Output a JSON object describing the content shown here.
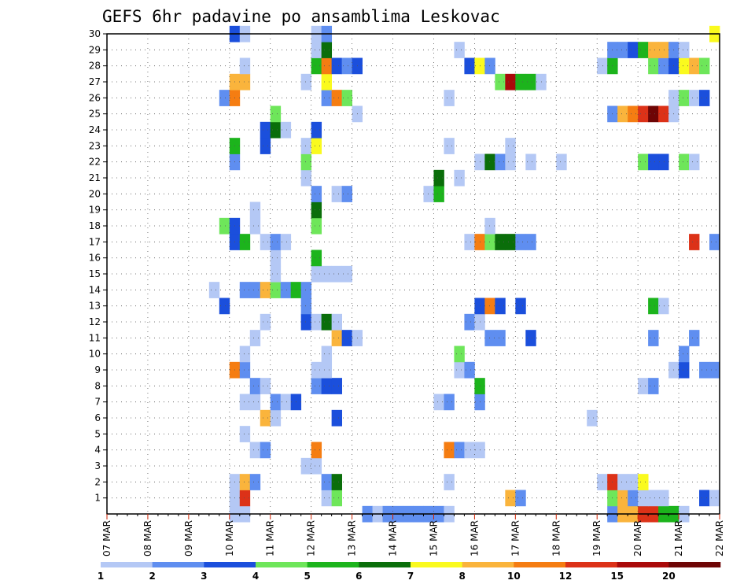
{
  "chart_data": {
    "type": "heatmap",
    "title": "GEFS 6hr padavine po ansamblima Leskovac",
    "xlabel": "",
    "ylabel": "",
    "y_range": [
      0,
      30
    ],
    "y_ticks": [
      1,
      2,
      3,
      4,
      5,
      6,
      7,
      8,
      9,
      10,
      11,
      12,
      13,
      14,
      15,
      16,
      17,
      18,
      19,
      20,
      21,
      22,
      23,
      24,
      25,
      26,
      27,
      28,
      29,
      30
    ],
    "x_ticks": [
      "07 MAR",
      "08 MAR",
      "09 MAR",
      "10 MAR",
      "11 MAR",
      "12 MAR",
      "13 MAR",
      "14 MAR",
      "15 MAR",
      "16 MAR",
      "17 MAR",
      "18 MAR",
      "19 MAR",
      "20 MAR",
      "21 MAR",
      "22 MAR"
    ],
    "x_unit": "6-hour step from 07 MAR 00Z",
    "grid": true,
    "colorbar": {
      "placement": "bottom",
      "levels": [
        "1",
        "2",
        "3",
        "4",
        "5",
        "6",
        "7",
        "8",
        "10",
        "12",
        "15",
        "20"
      ],
      "colors": [
        "#b4c8f5",
        "#5f8ef0",
        "#1b4fdc",
        "#6ee65a",
        "#1cb41c",
        "#0a6e0a",
        "#fafa1e",
        "#fab43c",
        "#f57d12",
        "#dc3218",
        "#aa0a0a",
        "#6e0505"
      ]
    },
    "cells": [
      [
        12,
        0,
        1
      ],
      [
        13,
        0,
        1
      ],
      [
        25,
        0,
        2
      ],
      [
        26,
        0,
        1
      ],
      [
        27,
        0,
        2
      ],
      [
        28,
        0,
        2
      ],
      [
        29,
        0,
        2
      ],
      [
        30,
        0,
        2
      ],
      [
        31,
        0,
        2
      ],
      [
        32,
        0,
        2
      ],
      [
        33,
        0,
        1
      ],
      [
        49,
        0,
        2
      ],
      [
        50,
        0,
        8
      ],
      [
        51,
        0,
        8
      ],
      [
        52,
        0,
        10
      ],
      [
        53,
        0,
        10
      ],
      [
        54,
        0,
        5
      ],
      [
        55,
        0,
        5
      ],
      [
        56,
        0,
        1
      ],
      [
        12,
        1,
        1
      ],
      [
        13,
        1,
        10
      ],
      [
        21,
        1,
        1
      ],
      [
        22,
        1,
        4
      ],
      [
        39,
        1,
        8
      ],
      [
        40,
        1,
        2
      ],
      [
        49,
        1,
        4
      ],
      [
        50,
        1,
        8
      ],
      [
        51,
        1,
        2
      ],
      [
        52,
        1,
        1
      ],
      [
        53,
        1,
        1
      ],
      [
        54,
        1,
        1
      ],
      [
        58,
        1,
        3
      ],
      [
        59,
        1,
        1
      ],
      [
        12,
        2,
        1
      ],
      [
        13,
        2,
        8
      ],
      [
        14,
        2,
        2
      ],
      [
        21,
        2,
        2
      ],
      [
        22,
        2,
        6
      ],
      [
        33,
        2,
        1
      ],
      [
        48,
        2,
        1
      ],
      [
        49,
        2,
        10
      ],
      [
        50,
        2,
        1
      ],
      [
        51,
        2,
        1
      ],
      [
        52,
        2,
        7
      ],
      [
        19,
        3,
        1
      ],
      [
        20,
        3,
        1
      ],
      [
        14,
        4,
        1
      ],
      [
        15,
        4,
        2
      ],
      [
        20,
        4,
        9
      ],
      [
        33,
        4,
        9
      ],
      [
        34,
        4,
        2
      ],
      [
        35,
        4,
        1
      ],
      [
        36,
        4,
        1
      ],
      [
        13,
        5,
        1
      ],
      [
        15,
        6,
        8
      ],
      [
        16,
        6,
        1
      ],
      [
        22,
        6,
        3
      ],
      [
        47,
        6,
        1
      ],
      [
        13,
        7,
        1
      ],
      [
        14,
        7,
        1
      ],
      [
        16,
        7,
        2
      ],
      [
        17,
        7,
        1
      ],
      [
        18,
        7,
        3
      ],
      [
        32,
        7,
        1
      ],
      [
        33,
        7,
        2
      ],
      [
        36,
        7,
        2
      ],
      [
        14,
        8,
        2
      ],
      [
        15,
        8,
        1
      ],
      [
        20,
        8,
        2
      ],
      [
        21,
        8,
        3
      ],
      [
        22,
        8,
        3
      ],
      [
        36,
        8,
        5
      ],
      [
        52,
        8,
        1
      ],
      [
        53,
        8,
        2
      ],
      [
        12,
        9,
        9
      ],
      [
        13,
        9,
        2
      ],
      [
        20,
        9,
        1
      ],
      [
        21,
        9,
        1
      ],
      [
        34,
        9,
        1
      ],
      [
        35,
        9,
        2
      ],
      [
        55,
        9,
        1
      ],
      [
        56,
        9,
        3
      ],
      [
        58,
        9,
        2
      ],
      [
        59,
        9,
        2
      ],
      [
        13,
        10,
        1
      ],
      [
        21,
        10,
        1
      ],
      [
        34,
        10,
        4
      ],
      [
        56,
        10,
        2
      ],
      [
        14,
        11,
        1
      ],
      [
        22,
        11,
        8
      ],
      [
        23,
        11,
        3
      ],
      [
        24,
        11,
        1
      ],
      [
        37,
        11,
        2
      ],
      [
        38,
        11,
        2
      ],
      [
        41,
        11,
        3
      ],
      [
        53,
        11,
        2
      ],
      [
        57,
        11,
        2
      ],
      [
        15,
        12,
        1
      ],
      [
        19,
        12,
        3
      ],
      [
        20,
        12,
        1
      ],
      [
        21,
        12,
        6
      ],
      [
        22,
        12,
        1
      ],
      [
        35,
        12,
        2
      ],
      [
        36,
        12,
        1
      ],
      [
        11,
        13,
        3
      ],
      [
        19,
        13,
        2
      ],
      [
        36,
        13,
        3
      ],
      [
        37,
        13,
        9
      ],
      [
        38,
        13,
        3
      ],
      [
        40,
        13,
        3
      ],
      [
        53,
        13,
        5
      ],
      [
        54,
        13,
        1
      ],
      [
        10,
        14,
        1
      ],
      [
        13,
        14,
        2
      ],
      [
        14,
        14,
        2
      ],
      [
        15,
        14,
        8
      ],
      [
        16,
        14,
        4
      ],
      [
        17,
        14,
        2
      ],
      [
        18,
        14,
        5
      ],
      [
        19,
        14,
        2
      ],
      [
        16,
        15,
        1
      ],
      [
        20,
        15,
        1
      ],
      [
        21,
        15,
        1
      ],
      [
        22,
        15,
        1
      ],
      [
        23,
        15,
        1
      ],
      [
        16,
        16,
        1
      ],
      [
        20,
        16,
        5
      ],
      [
        12,
        17,
        3
      ],
      [
        13,
        17,
        5
      ],
      [
        15,
        17,
        1
      ],
      [
        16,
        17,
        2
      ],
      [
        17,
        17,
        1
      ],
      [
        35,
        17,
        1
      ],
      [
        36,
        17,
        9
      ],
      [
        37,
        17,
        4
      ],
      [
        38,
        17,
        6
      ],
      [
        39,
        17,
        6
      ],
      [
        40,
        17,
        2
      ],
      [
        41,
        17,
        2
      ],
      [
        57,
        17,
        10
      ],
      [
        59,
        17,
        2
      ],
      [
        11,
        18,
        4
      ],
      [
        12,
        18,
        3
      ],
      [
        14,
        18,
        1
      ],
      [
        20,
        18,
        4
      ],
      [
        37,
        18,
        1
      ],
      [
        14,
        19,
        1
      ],
      [
        20,
        19,
        6
      ],
      [
        20,
        20,
        2
      ],
      [
        22,
        20,
        1
      ],
      [
        23,
        20,
        2
      ],
      [
        31,
        20,
        1
      ],
      [
        32,
        20,
        5
      ],
      [
        19,
        21,
        1
      ],
      [
        32,
        21,
        6
      ],
      [
        34,
        21,
        1
      ],
      [
        12,
        22,
        2
      ],
      [
        19,
        22,
        4
      ],
      [
        36,
        22,
        1
      ],
      [
        37,
        22,
        6
      ],
      [
        38,
        22,
        2
      ],
      [
        39,
        22,
        1
      ],
      [
        41,
        22,
        1
      ],
      [
        44,
        22,
        1
      ],
      [
        52,
        22,
        4
      ],
      [
        53,
        22,
        3
      ],
      [
        54,
        22,
        3
      ],
      [
        56,
        22,
        4
      ],
      [
        57,
        22,
        1
      ],
      [
        12,
        23,
        5
      ],
      [
        15,
        23,
        3
      ],
      [
        19,
        23,
        1
      ],
      [
        20,
        23,
        7
      ],
      [
        33,
        23,
        1
      ],
      [
        39,
        23,
        1
      ],
      [
        15,
        24,
        3
      ],
      [
        16,
        24,
        6
      ],
      [
        17,
        24,
        1
      ],
      [
        20,
        24,
        3
      ],
      [
        16,
        25,
        4
      ],
      [
        24,
        25,
        1
      ],
      [
        49,
        25,
        2
      ],
      [
        50,
        25,
        8
      ],
      [
        51,
        25,
        9
      ],
      [
        52,
        25,
        10
      ],
      [
        53,
        25,
        12
      ],
      [
        54,
        25,
        10
      ],
      [
        55,
        25,
        1
      ],
      [
        11,
        26,
        2
      ],
      [
        12,
        26,
        9
      ],
      [
        21,
        26,
        2
      ],
      [
        22,
        26,
        9
      ],
      [
        23,
        26,
        4
      ],
      [
        33,
        26,
        1
      ],
      [
        55,
        26,
        1
      ],
      [
        56,
        26,
        4
      ],
      [
        57,
        26,
        1
      ],
      [
        58,
        26,
        3
      ],
      [
        12,
        27,
        8
      ],
      [
        13,
        27,
        8
      ],
      [
        19,
        27,
        1
      ],
      [
        21,
        27,
        7
      ],
      [
        38,
        27,
        4
      ],
      [
        39,
        27,
        11
      ],
      [
        40,
        27,
        5
      ],
      [
        41,
        27,
        5
      ],
      [
        42,
        27,
        1
      ],
      [
        13,
        28,
        1
      ],
      [
        20,
        28,
        5
      ],
      [
        21,
        28,
        9
      ],
      [
        22,
        28,
        3
      ],
      [
        23,
        28,
        2
      ],
      [
        24,
        28,
        3
      ],
      [
        35,
        28,
        3
      ],
      [
        36,
        28,
        7
      ],
      [
        37,
        28,
        2
      ],
      [
        48,
        28,
        1
      ],
      [
        49,
        28,
        5
      ],
      [
        53,
        28,
        4
      ],
      [
        54,
        28,
        2
      ],
      [
        55,
        28,
        3
      ],
      [
        56,
        28,
        7
      ],
      [
        57,
        28,
        8
      ],
      [
        58,
        28,
        4
      ],
      [
        20,
        29,
        1
      ],
      [
        21,
        29,
        6
      ],
      [
        34,
        29,
        1
      ],
      [
        49,
        29,
        2
      ],
      [
        50,
        29,
        2
      ],
      [
        51,
        29,
        3
      ],
      [
        52,
        29,
        5
      ],
      [
        53,
        29,
        8
      ],
      [
        54,
        29,
        8
      ],
      [
        55,
        29,
        2
      ],
      [
        56,
        29,
        1
      ],
      [
        12,
        30,
        3
      ],
      [
        13,
        30,
        1
      ],
      [
        20,
        30,
        1
      ],
      [
        21,
        30,
        2
      ],
      [
        59,
        30,
        7
      ]
    ]
  }
}
